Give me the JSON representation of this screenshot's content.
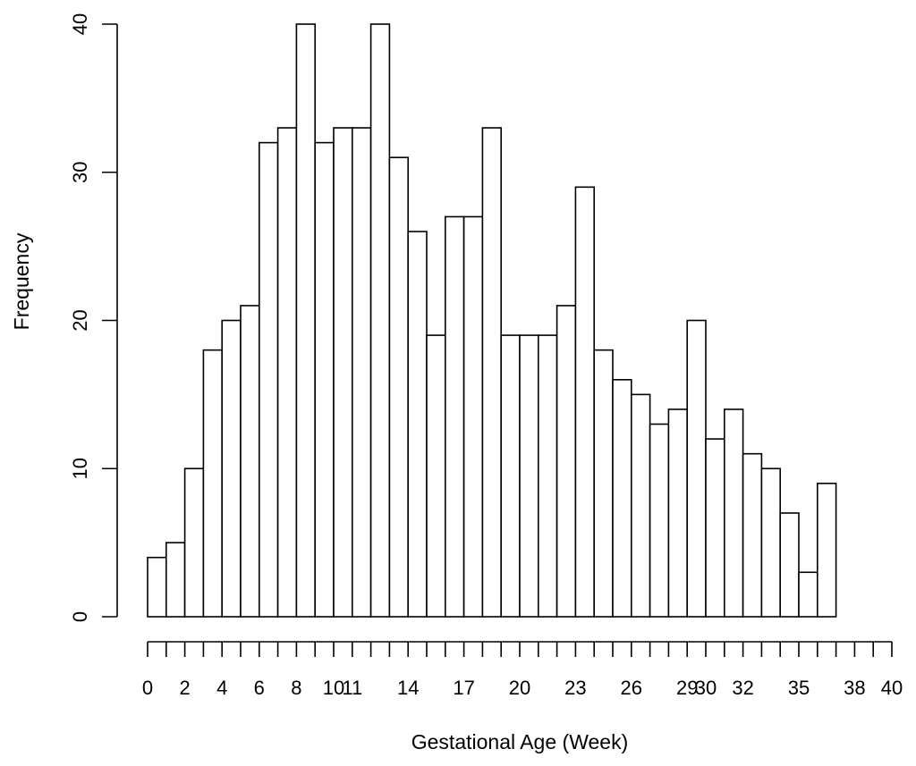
{
  "chart_data": {
    "type": "bar",
    "xlabel": "Gestational Age (Week)",
    "ylabel": "Frequency",
    "ylim": [
      0,
      40
    ],
    "y_ticks": [
      0,
      10,
      20,
      30,
      40
    ],
    "x_range": [
      0,
      40
    ],
    "x_ticks": [
      0,
      1,
      2,
      3,
      4,
      5,
      6,
      7,
      8,
      9,
      10,
      11,
      12,
      13,
      14,
      15,
      16,
      17,
      18,
      19,
      20,
      21,
      22,
      23,
      24,
      25,
      26,
      27,
      28,
      29,
      30,
      31,
      32,
      33,
      34,
      35,
      36,
      37,
      38,
      39,
      40
    ],
    "x_tick_labels": [
      {
        "value": 0,
        "label": "0"
      },
      {
        "value": 2,
        "label": "2"
      },
      {
        "value": 4,
        "label": "4"
      },
      {
        "value": 6,
        "label": "6"
      },
      {
        "value": 8,
        "label": "8"
      },
      {
        "value": 10,
        "label": "10"
      },
      {
        "value": 11,
        "label": "11"
      },
      {
        "value": 14,
        "label": "14"
      },
      {
        "value": 17,
        "label": "17"
      },
      {
        "value": 20,
        "label": "20"
      },
      {
        "value": 23,
        "label": "23"
      },
      {
        "value": 26,
        "label": "26"
      },
      {
        "value": 29,
        "label": "29"
      },
      {
        "value": 30,
        "label": "30"
      },
      {
        "value": 32,
        "label": "32"
      },
      {
        "value": 35,
        "label": "35"
      },
      {
        "value": 38,
        "label": "38"
      },
      {
        "value": 40,
        "label": "40"
      }
    ],
    "bins": [
      {
        "start": 0,
        "end": 1,
        "value": 4
      },
      {
        "start": 1,
        "end": 2,
        "value": 5
      },
      {
        "start": 2,
        "end": 3,
        "value": 10
      },
      {
        "start": 3,
        "end": 4,
        "value": 18
      },
      {
        "start": 4,
        "end": 5,
        "value": 20
      },
      {
        "start": 5,
        "end": 6,
        "value": 21
      },
      {
        "start": 6,
        "end": 7,
        "value": 32
      },
      {
        "start": 7,
        "end": 8,
        "value": 33
      },
      {
        "start": 8,
        "end": 9,
        "value": 40
      },
      {
        "start": 9,
        "end": 10,
        "value": 32
      },
      {
        "start": 10,
        "end": 11,
        "value": 33
      },
      {
        "start": 11,
        "end": 12,
        "value": 33
      },
      {
        "start": 12,
        "end": 13,
        "value": 40
      },
      {
        "start": 13,
        "end": 14,
        "value": 31
      },
      {
        "start": 14,
        "end": 15,
        "value": 26
      },
      {
        "start": 15,
        "end": 16,
        "value": 19
      },
      {
        "start": 16,
        "end": 17,
        "value": 27
      },
      {
        "start": 17,
        "end": 18,
        "value": 27
      },
      {
        "start": 18,
        "end": 19,
        "value": 33
      },
      {
        "start": 19,
        "end": 20,
        "value": 19
      },
      {
        "start": 20,
        "end": 21,
        "value": 19
      },
      {
        "start": 21,
        "end": 22,
        "value": 19
      },
      {
        "start": 22,
        "end": 23,
        "value": 21
      },
      {
        "start": 23,
        "end": 24,
        "value": 29
      },
      {
        "start": 24,
        "end": 25,
        "value": 18
      },
      {
        "start": 25,
        "end": 26,
        "value": 16
      },
      {
        "start": 26,
        "end": 27,
        "value": 15
      },
      {
        "start": 27,
        "end": 28,
        "value": 13
      },
      {
        "start": 28,
        "end": 29,
        "value": 14
      },
      {
        "start": 29,
        "end": 30,
        "value": 20
      },
      {
        "start": 30,
        "end": 31,
        "value": 12
      },
      {
        "start": 31,
        "end": 32,
        "value": 14
      },
      {
        "start": 32,
        "end": 33,
        "value": 11
      },
      {
        "start": 33,
        "end": 34,
        "value": 10
      },
      {
        "start": 34,
        "end": 35,
        "value": 7
      },
      {
        "start": 35,
        "end": 36,
        "value": 3
      },
      {
        "start": 36,
        "end": 37,
        "value": 9
      }
    ],
    "grid": false,
    "legend": "none",
    "colors": {
      "bar_fill": "#ffffff",
      "bar_stroke": "#000000"
    }
  }
}
